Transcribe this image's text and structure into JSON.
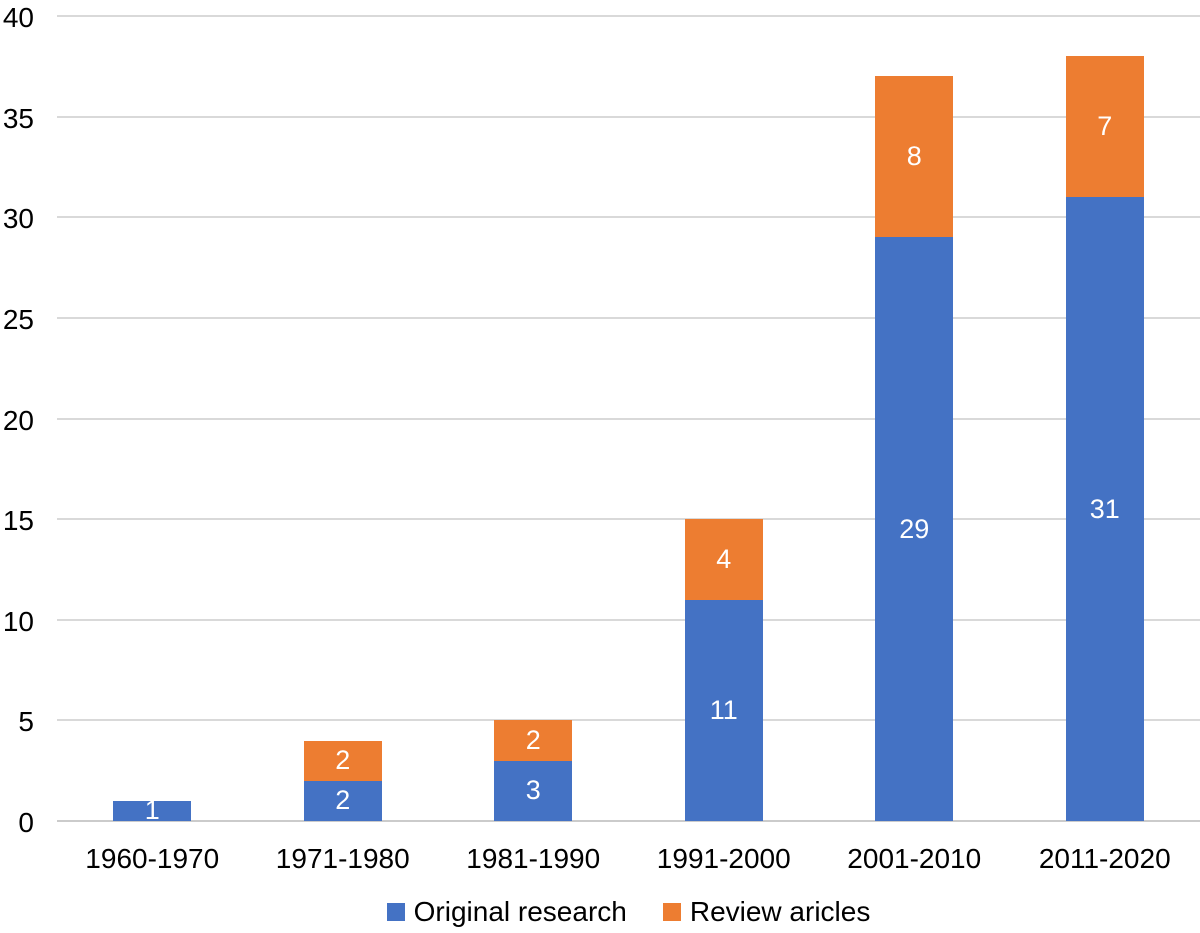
{
  "chart_data": {
    "type": "bar",
    "stacked": true,
    "title": "",
    "xlabel": "",
    "ylabel": "",
    "categories": [
      "1960-1970",
      "1971-1980",
      "1981-1990",
      "1991-2000",
      "2001-2010",
      "2011-2020"
    ],
    "series": [
      {
        "name": "Original research",
        "color": "#4472C4",
        "values": [
          1,
          2,
          3,
          11,
          29,
          31
        ]
      },
      {
        "name": "Review aricles",
        "color": "#ED7D31",
        "values": [
          0,
          2,
          2,
          4,
          8,
          7
        ]
      }
    ],
    "totals": [
      1,
      4,
      5,
      15,
      37,
      38
    ],
    "ylim": [
      0,
      40
    ],
    "yticks": [
      0,
      5,
      10,
      15,
      20,
      25,
      30,
      35,
      40
    ],
    "grid": true,
    "legend_position": "bottom",
    "data_label_color": "#FFFFFF",
    "gridline_color": "#D9D9D9",
    "axis_line_color": "#CBCBCB",
    "text_color": "#000000",
    "background_color": "#FFFFFF"
  }
}
